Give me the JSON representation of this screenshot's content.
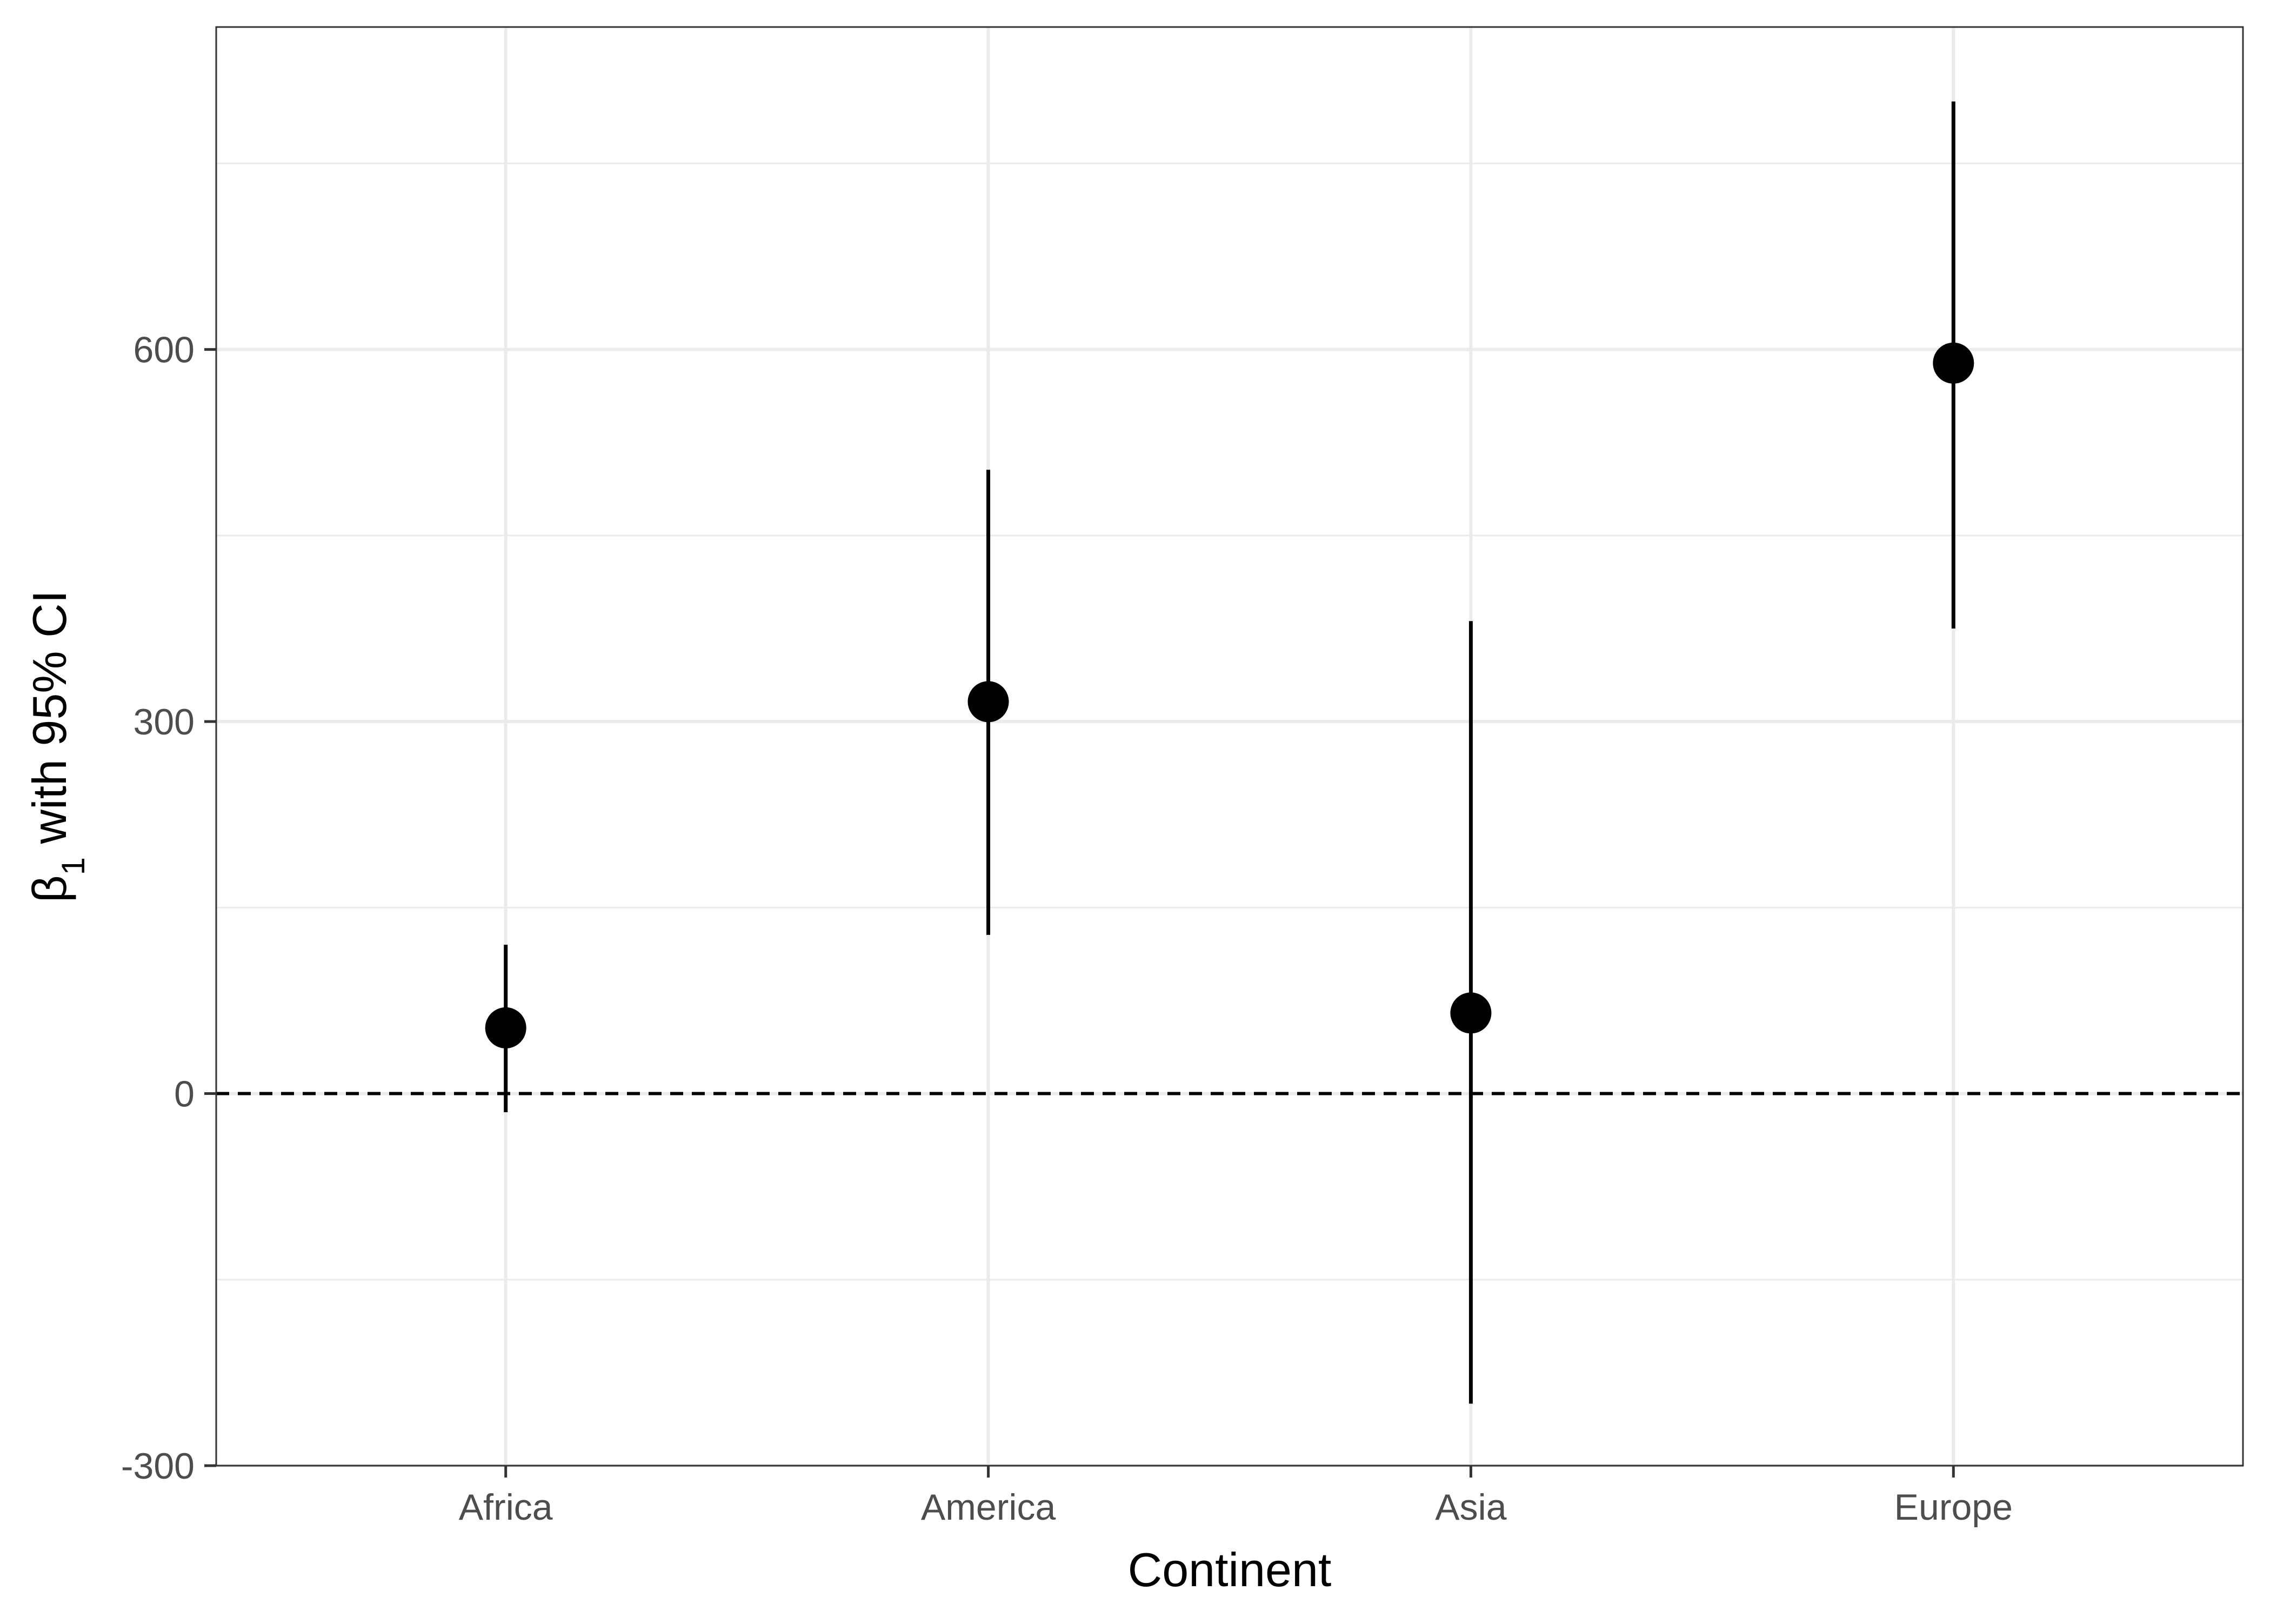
{
  "chart_data": {
    "type": "scatter",
    "title": "",
    "xlabel": "Continent",
    "ylabel": {
      "prefix": "β",
      "subscript": "1",
      "suffix": " with 95% CI"
    },
    "categories": [
      "Africa",
      "America",
      "Asia",
      "Europe"
    ],
    "series": [
      {
        "estimate": [
          53,
          316,
          65,
          589
        ],
        "ci_lower": [
          -15,
          128,
          -250,
          375
        ],
        "ci_upper": [
          120,
          503,
          381,
          800
        ]
      }
    ],
    "ylim": [
      -300,
      860
    ],
    "y_ticks": [
      -300,
      0,
      300,
      600
    ],
    "y_tick_labels": [
      "-300",
      "0",
      "300",
      "600"
    ],
    "reference_line": {
      "y": 0,
      "style": "dashed"
    },
    "grid": true,
    "legend": "none",
    "colors": {
      "points": "#000000",
      "gridline": "#ebebeb",
      "panel_border": "#333333",
      "tick_label": "#4d4d4d"
    }
  }
}
